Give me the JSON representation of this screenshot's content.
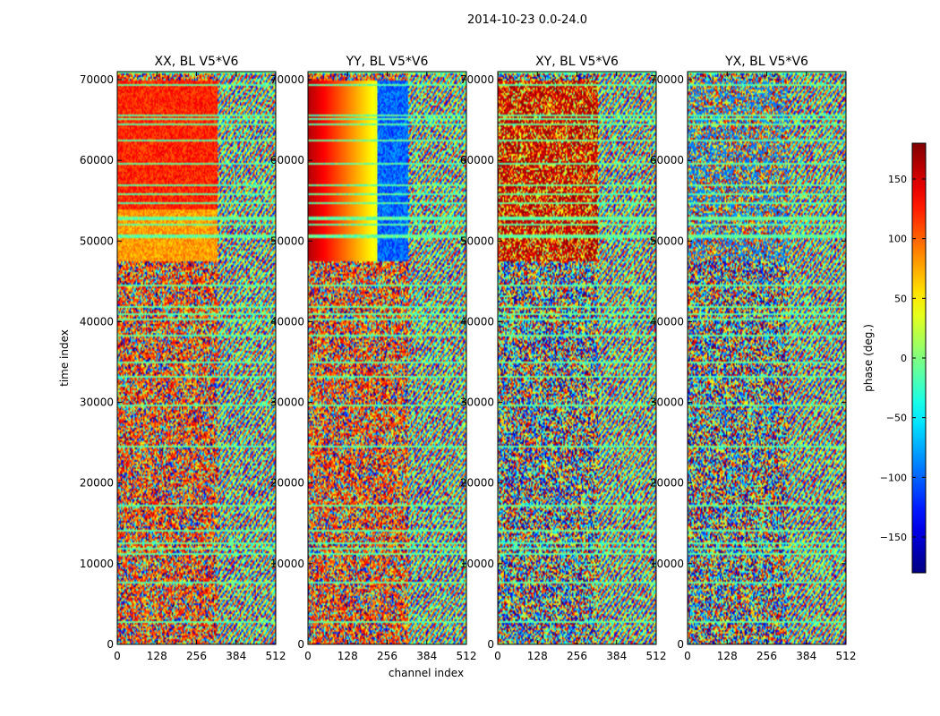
{
  "figure": {
    "suptitle": "2014-10-23 0.0-24.0",
    "shared_ylabel": "time index",
    "shared_xlabel": "channel index"
  },
  "chart_data": [
    {
      "type": "heatmap",
      "title": "XX, BL V5*V6",
      "xlim": [
        0,
        512
      ],
      "ylim": [
        0,
        71000
      ],
      "xticks": [
        0,
        128,
        256,
        384,
        512
      ],
      "yticks": [
        0,
        10000,
        20000,
        30000,
        40000,
        50000,
        60000,
        70000
      ],
      "pattern": "xx"
    },
    {
      "type": "heatmap",
      "title": "YY, BL V5*V6",
      "xlim": [
        0,
        512
      ],
      "ylim": [
        0,
        71000
      ],
      "xticks": [
        0,
        128,
        256,
        384,
        512
      ],
      "yticks": [
        0,
        10000,
        20000,
        30000,
        40000,
        50000,
        60000,
        70000
      ],
      "pattern": "yy"
    },
    {
      "type": "heatmap",
      "title": "XY, BL V5*V6",
      "xlim": [
        0,
        512
      ],
      "ylim": [
        0,
        71000
      ],
      "xticks": [
        0,
        128,
        256,
        384,
        512
      ],
      "yticks": [
        0,
        10000,
        20000,
        30000,
        40000,
        50000,
        60000,
        70000
      ],
      "pattern": "xy"
    },
    {
      "type": "heatmap",
      "title": "YX, BL V5*V6",
      "xlim": [
        0,
        512
      ],
      "ylim": [
        0,
        71000
      ],
      "xticks": [
        0,
        128,
        256,
        384,
        512
      ],
      "yticks": [
        0,
        10000,
        20000,
        30000,
        40000,
        50000,
        60000,
        70000
      ],
      "pattern": "yx"
    }
  ],
  "colorbar": {
    "label": "phase (deg.)",
    "range": [
      -180,
      180
    ],
    "ticks": [
      150,
      100,
      50,
      0,
      -50,
      -100,
      -150
    ],
    "tick_labels": [
      "150",
      "100",
      "50",
      "0",
      "−50",
      "−100",
      "−150"
    ],
    "colormap": "jet"
  }
}
